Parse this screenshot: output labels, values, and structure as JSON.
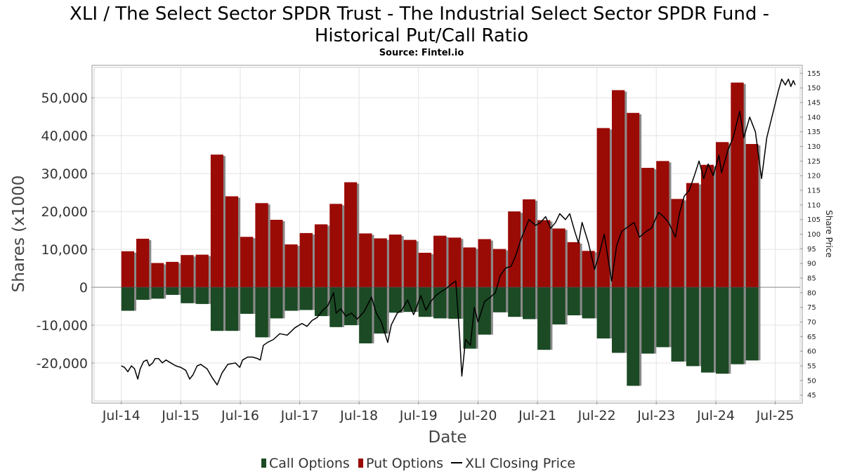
{
  "chart_data": {
    "type": "bar",
    "title_line1": "XLI / The Select Sector SPDR Trust - The Industrial Select Sector SPDR Fund -",
    "title_line2": "Historical Put/Call Ratio",
    "source": "Source: Fintel.io",
    "xlabel": "Date",
    "ylabel": "Shares (x1000",
    "y2label": "Share Price",
    "ylim": [
      -30000,
      58000
    ],
    "y2lim": [
      43,
      157
    ],
    "yticks": [
      "50,000",
      "40,000",
      "30,000",
      "20,000",
      "10,000",
      "0",
      "-10,000",
      "-20,000"
    ],
    "ytick_values": [
      50000,
      40000,
      30000,
      20000,
      10000,
      0,
      -10000,
      -20000
    ],
    "y2ticks": [
      45,
      50,
      55,
      60,
      65,
      70,
      75,
      80,
      85,
      90,
      95,
      100,
      105,
      110,
      115,
      120,
      125,
      130,
      135,
      140,
      145,
      150,
      155
    ],
    "xlim": [
      "2014-01-15",
      "2025-12-01"
    ],
    "xticks": [
      {
        "label": "Jul-14",
        "date": "2014-07-01"
      },
      {
        "label": "Jul-15",
        "date": "2015-07-01"
      },
      {
        "label": "Jul-16",
        "date": "2016-07-01"
      },
      {
        "label": "Jul-17",
        "date": "2017-07-01"
      },
      {
        "label": "Jul-18",
        "date": "2018-07-01"
      },
      {
        "label": "Jul-19",
        "date": "2019-07-01"
      },
      {
        "label": "Jul-20",
        "date": "2020-07-01"
      },
      {
        "label": "Jul-21",
        "date": "2021-07-01"
      },
      {
        "label": "Jul-22",
        "date": "2022-07-01"
      },
      {
        "label": "Jul-23",
        "date": "2023-07-01"
      },
      {
        "label": "Jul-24",
        "date": "2024-07-01"
      },
      {
        "label": "Jul-25",
        "date": "2025-07-01"
      }
    ],
    "grid": true,
    "legend_position": "bottom",
    "colors": {
      "call": "#1b4a24",
      "put": "#9a0b06",
      "price": "#000000",
      "shadow": "#8a8a8a",
      "grid": "#e3e3e3",
      "axis": "#999999"
    },
    "series": [
      {
        "name": "Put Options",
        "bars": [
          [
            "2014-07-01",
            9500
          ],
          [
            "2014-10-01",
            12800
          ],
          [
            "2015-01-01",
            6400
          ],
          [
            "2015-04-01",
            6700
          ],
          [
            "2015-07-01",
            8500
          ],
          [
            "2015-10-01",
            8600
          ],
          [
            "2016-01-01",
            35000
          ],
          [
            "2016-04-01",
            24000
          ],
          [
            "2016-07-01",
            13300
          ],
          [
            "2016-10-01",
            22200
          ],
          [
            "2017-01-01",
            17800
          ],
          [
            "2017-04-01",
            11300
          ],
          [
            "2017-07-01",
            14300
          ],
          [
            "2017-10-01",
            16600
          ],
          [
            "2018-01-01",
            22000
          ],
          [
            "2018-04-01",
            27700
          ],
          [
            "2018-07-01",
            14200
          ],
          [
            "2018-10-01",
            12900
          ],
          [
            "2019-01-01",
            13900
          ],
          [
            "2019-04-01",
            12500
          ],
          [
            "2019-07-01",
            9100
          ],
          [
            "2019-10-01",
            13600
          ],
          [
            "2020-01-01",
            13100
          ],
          [
            "2020-04-01",
            10500
          ],
          [
            "2020-07-01",
            12700
          ],
          [
            "2020-10-01",
            10100
          ],
          [
            "2021-01-01",
            20000
          ],
          [
            "2021-04-01",
            23200
          ],
          [
            "2021-07-01",
            17700
          ],
          [
            "2021-10-01",
            15500
          ],
          [
            "2022-01-01",
            11900
          ],
          [
            "2022-04-01",
            9600
          ],
          [
            "2022-07-01",
            42000
          ],
          [
            "2022-10-01",
            52000
          ],
          [
            "2023-01-01",
            46000
          ],
          [
            "2023-04-01",
            31500
          ],
          [
            "2023-07-01",
            33300
          ],
          [
            "2023-10-01",
            23300
          ],
          [
            "2024-01-01",
            27500
          ],
          [
            "2024-04-01",
            32300
          ],
          [
            "2024-07-01",
            38300
          ],
          [
            "2024-10-01",
            54000
          ],
          [
            "2025-01-01",
            37800
          ]
        ]
      },
      {
        "name": "Call Options",
        "bars": [
          [
            "2014-07-01",
            -6200
          ],
          [
            "2014-10-01",
            -3300
          ],
          [
            "2015-01-01",
            -3000
          ],
          [
            "2015-04-01",
            -2000
          ],
          [
            "2015-07-01",
            -4200
          ],
          [
            "2015-10-01",
            -4400
          ],
          [
            "2016-01-01",
            -11500
          ],
          [
            "2016-04-01",
            -11500
          ],
          [
            "2016-07-01",
            -7000
          ],
          [
            "2016-10-01",
            -13200
          ],
          [
            "2017-01-01",
            -8200
          ],
          [
            "2017-04-01",
            -6200
          ],
          [
            "2017-07-01",
            -6000
          ],
          [
            "2017-10-01",
            -7600
          ],
          [
            "2018-01-01",
            -10500
          ],
          [
            "2018-04-01",
            -10000
          ],
          [
            "2018-07-01",
            -14800
          ],
          [
            "2018-10-01",
            -12200
          ],
          [
            "2019-01-01",
            -6700
          ],
          [
            "2019-04-01",
            -6500
          ],
          [
            "2019-07-01",
            -7800
          ],
          [
            "2019-10-01",
            -8200
          ],
          [
            "2020-01-01",
            -8300
          ],
          [
            "2020-04-01",
            -16200
          ],
          [
            "2020-07-01",
            -12500
          ],
          [
            "2020-10-01",
            -6600
          ],
          [
            "2021-01-01",
            -7800
          ],
          [
            "2021-04-01",
            -8400
          ],
          [
            "2021-07-01",
            -16500
          ],
          [
            "2021-10-01",
            -9800
          ],
          [
            "2022-01-01",
            -7400
          ],
          [
            "2022-04-01",
            -8200
          ],
          [
            "2022-07-01",
            -13500
          ],
          [
            "2022-10-01",
            -17300
          ],
          [
            "2023-01-01",
            -26000
          ],
          [
            "2023-04-01",
            -17500
          ],
          [
            "2023-07-01",
            -15800
          ],
          [
            "2023-10-01",
            -19600
          ],
          [
            "2024-01-01",
            -20800
          ],
          [
            "2024-04-01",
            -22500
          ],
          [
            "2024-07-01",
            -22800
          ],
          [
            "2024-10-01",
            -20300
          ],
          [
            "2025-01-01",
            -19300
          ]
        ]
      },
      {
        "name": "XLI Closing Price",
        "points": [
          [
            "2014-07-01",
            55
          ],
          [
            "2014-07-20",
            54.5
          ],
          [
            "2014-08-10",
            53
          ],
          [
            "2014-09-01",
            55
          ],
          [
            "2014-09-20",
            54
          ],
          [
            "2014-10-10",
            50.5
          ],
          [
            "2014-10-25",
            54
          ],
          [
            "2014-11-15",
            56.5
          ],
          [
            "2014-12-05",
            57
          ],
          [
            "2014-12-20",
            55
          ],
          [
            "2015-01-10",
            56
          ],
          [
            "2015-01-25",
            57.5
          ],
          [
            "2015-02-15",
            57.5
          ],
          [
            "2015-03-10",
            56
          ],
          [
            "2015-04-01",
            57
          ],
          [
            "2015-05-01",
            56
          ],
          [
            "2015-06-01",
            55
          ],
          [
            "2015-07-01",
            54.5
          ],
          [
            "2015-08-01",
            53.5
          ],
          [
            "2015-08-25",
            50.5
          ],
          [
            "2015-09-15",
            52
          ],
          [
            "2015-10-10",
            55
          ],
          [
            "2015-11-01",
            55.5
          ],
          [
            "2015-12-10",
            54
          ],
          [
            "2016-01-10",
            51
          ],
          [
            "2016-02-10",
            48.5
          ],
          [
            "2016-03-10",
            52.5
          ],
          [
            "2016-04-15",
            55.5
          ],
          [
            "2016-06-01",
            56
          ],
          [
            "2016-06-28",
            54.5
          ],
          [
            "2016-07-15",
            57
          ],
          [
            "2016-08-15",
            58
          ],
          [
            "2016-09-15",
            58
          ],
          [
            "2016-10-15",
            57.5
          ],
          [
            "2016-11-01",
            57
          ],
          [
            "2016-11-20",
            62
          ],
          [
            "2016-12-15",
            63
          ],
          [
            "2017-01-20",
            64
          ],
          [
            "2017-03-01",
            66
          ],
          [
            "2017-04-15",
            65.5
          ],
          [
            "2017-06-01",
            68
          ],
          [
            "2017-07-15",
            69.5
          ],
          [
            "2017-08-15",
            68.5
          ],
          [
            "2017-09-15",
            70.5
          ],
          [
            "2017-10-15",
            71.5
          ],
          [
            "2017-11-20",
            74
          ],
          [
            "2017-12-20",
            75.5
          ],
          [
            "2018-01-25",
            80
          ],
          [
            "2018-02-10",
            73
          ],
          [
            "2018-03-10",
            74.5
          ],
          [
            "2018-04-10",
            72
          ],
          [
            "2018-05-15",
            73
          ],
          [
            "2018-06-20",
            71
          ],
          [
            "2018-08-01",
            73.5
          ],
          [
            "2018-09-15",
            78.5
          ],
          [
            "2018-10-15",
            73
          ],
          [
            "2018-11-15",
            70
          ],
          [
            "2018-12-24",
            63
          ],
          [
            "2019-01-15",
            69
          ],
          [
            "2019-02-20",
            73
          ],
          [
            "2019-03-20",
            74
          ],
          [
            "2019-04-25",
            77.5
          ],
          [
            "2019-06-01",
            72.5
          ],
          [
            "2019-07-15",
            79
          ],
          [
            "2019-08-15",
            74
          ],
          [
            "2019-09-15",
            77
          ],
          [
            "2019-10-15",
            79
          ],
          [
            "2019-11-20",
            80.5
          ],
          [
            "2019-12-20",
            81.5
          ],
          [
            "2020-01-20",
            83
          ],
          [
            "2020-02-15",
            84
          ],
          [
            "2020-03-10",
            65
          ],
          [
            "2020-03-23",
            51.5
          ],
          [
            "2020-04-15",
            64
          ],
          [
            "2020-05-15",
            62
          ],
          [
            "2020-06-08",
            75
          ],
          [
            "2020-07-01",
            70
          ],
          [
            "2020-08-10",
            77
          ],
          [
            "2020-09-15",
            78.5
          ],
          [
            "2020-10-15",
            80
          ],
          [
            "2020-11-15",
            86
          ],
          [
            "2020-12-20",
            88.5
          ],
          [
            "2021-01-20",
            89
          ],
          [
            "2021-02-20",
            93
          ],
          [
            "2021-03-20",
            98
          ],
          [
            "2021-05-10",
            105
          ],
          [
            "2021-06-20",
            103
          ],
          [
            "2021-07-20",
            104
          ],
          [
            "2021-08-20",
            106
          ],
          [
            "2021-09-20",
            102
          ],
          [
            "2021-10-20",
            104
          ],
          [
            "2021-11-15",
            107
          ],
          [
            "2021-12-20",
            105
          ],
          [
            "2022-01-15",
            107
          ],
          [
            "2022-02-15",
            101
          ],
          [
            "2022-03-10",
            97
          ],
          [
            "2022-04-01",
            104
          ],
          [
            "2022-05-10",
            97
          ],
          [
            "2022-06-17",
            88
          ],
          [
            "2022-07-15",
            93
          ],
          [
            "2022-08-15",
            100
          ],
          [
            "2022-09-30",
            84
          ],
          [
            "2022-10-30",
            96
          ],
          [
            "2022-12-01",
            101
          ],
          [
            "2023-01-20",
            103
          ],
          [
            "2023-02-15",
            104
          ],
          [
            "2023-03-20",
            99
          ],
          [
            "2023-05-01",
            101
          ],
          [
            "2023-06-01",
            102
          ],
          [
            "2023-07-15",
            107.5
          ],
          [
            "2023-08-15",
            106
          ],
          [
            "2023-09-15",
            104
          ],
          [
            "2023-10-27",
            99
          ],
          [
            "2023-11-20",
            107
          ],
          [
            "2023-12-20",
            113
          ],
          [
            "2024-01-20",
            115
          ],
          [
            "2024-02-20",
            120
          ],
          [
            "2024-03-20",
            125
          ],
          [
            "2024-04-18",
            119
          ],
          [
            "2024-05-15",
            124
          ],
          [
            "2024-06-15",
            120
          ],
          [
            "2024-07-20",
            127
          ],
          [
            "2024-08-05",
            121
          ],
          [
            "2024-09-15",
            129
          ],
          [
            "2024-10-15",
            133
          ],
          [
            "2024-11-25",
            142
          ],
          [
            "2024-12-20",
            133
          ],
          [
            "2025-01-25",
            140
          ],
          [
            "2025-03-01",
            135
          ],
          [
            "2025-04-08",
            119
          ],
          [
            "2025-05-10",
            133
          ],
          [
            "2025-06-15",
            141
          ],
          [
            "2025-07-20",
            149
          ],
          [
            "2025-08-10",
            153
          ],
          [
            "2025-09-01",
            151
          ],
          [
            "2025-09-20",
            153
          ],
          [
            "2025-10-05",
            150.5
          ],
          [
            "2025-10-20",
            152.5
          ],
          [
            "2025-11-01",
            151
          ]
        ]
      }
    ]
  },
  "legend": {
    "call_label": "Call Options",
    "put_label": "Put Options",
    "price_label": "XLI Closing Price"
  }
}
